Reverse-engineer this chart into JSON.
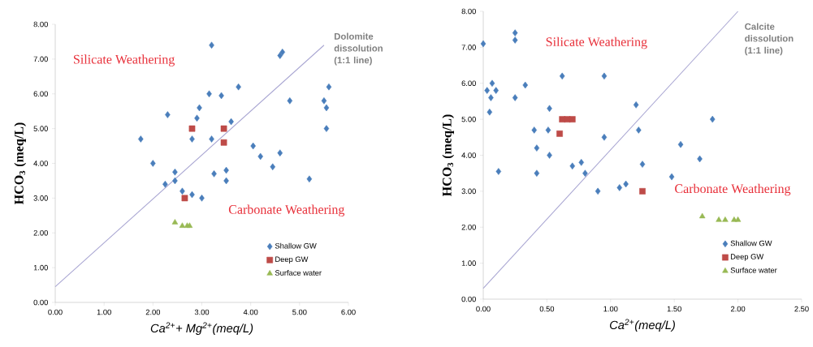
{
  "chart_data": [
    {
      "type": "scatter",
      "xlabel": "Ca$^{2+}$+ Mg$^{2+}$(meq/L)",
      "ylabel": "HCO$_{3}$ (meq/L)",
      "xlim": [
        0,
        6
      ],
      "ylim": [
        0,
        8
      ],
      "xticks": [
        {
          "value": 0,
          "label": "0.00"
        },
        {
          "value": 1,
          "label": "1.00"
        },
        {
          "value": 2,
          "label": "2.00"
        },
        {
          "value": 3,
          "label": "3.00"
        },
        {
          "value": 4,
          "label": "4.00"
        },
        {
          "value": 5,
          "label": "5.00"
        },
        {
          "value": 6,
          "label": "6.00"
        }
      ],
      "yticks": [
        {
          "value": 0,
          "label": "0.00"
        },
        {
          "value": 1,
          "label": "1.00"
        },
        {
          "value": 2,
          "label": "2.00"
        },
        {
          "value": 3,
          "label": "3.00"
        },
        {
          "value": 4,
          "label": "4.00"
        },
        {
          "value": 5,
          "label": "5.00"
        },
        {
          "value": 6,
          "label": "6.00"
        },
        {
          "value": 7,
          "label": "7.00"
        },
        {
          "value": 8,
          "label": "8.00"
        }
      ],
      "legend": "bottom right",
      "annotations": [
        "Silicate Weathering",
        "Carbonate Weathering",
        "Dolomite dissolution (1:1 line)"
      ],
      "series": [
        {
          "name": "Shallow GW",
          "color": "#4a7ebb",
          "marker": "diamond",
          "x": [
            1.75,
            2.0,
            2.25,
            2.3,
            2.45,
            2.45,
            2.6,
            2.8,
            2.8,
            2.9,
            2.95,
            3.0,
            3.15,
            3.2,
            3.2,
            3.25,
            3.4,
            3.5,
            3.5,
            3.6,
            3.75,
            4.05,
            4.2,
            4.45,
            4.6,
            4.6,
            4.65,
            4.8,
            5.2,
            5.5,
            5.55,
            5.55,
            5.6
          ],
          "values": [
            4.7,
            4.0,
            3.4,
            5.4,
            3.75,
            3.5,
            3.2,
            4.7,
            3.1,
            5.3,
            5.6,
            3.0,
            6.0,
            4.7,
            7.4,
            3.7,
            5.95,
            3.8,
            3.5,
            5.2,
            6.2,
            4.5,
            4.2,
            3.9,
            4.3,
            7.1,
            7.2,
            5.8,
            3.55,
            5.8,
            5.6,
            5.0,
            6.2
          ]
        },
        {
          "name": "Deep GW",
          "color": "#be4b48",
          "marker": "square",
          "x": [
            2.65,
            2.8,
            3.45,
            3.45
          ],
          "values": [
            3.0,
            5.0,
            5.0,
            4.6
          ]
        },
        {
          "name": "Surface water",
          "color": "#98b954",
          "marker": "triangle",
          "x": [
            2.45,
            2.6,
            2.7,
            2.75
          ],
          "values": [
            2.3,
            2.2,
            2.2,
            2.2
          ]
        },
        {
          "type": "line",
          "color": "#a9a6d2",
          "marker": "none",
          "line_style": "solid",
          "x": [
            0,
            5.5
          ],
          "values": [
            0.45,
            7.4
          ]
        }
      ]
    },
    {
      "type": "scatter",
      "xlabel": "Ca$^{2+}$(meq/L)",
      "ylabel": "HCO$_{3}$ (meq/L)",
      "xlim": [
        0,
        2.5
      ],
      "ylim": [
        0,
        8
      ],
      "xticks": [
        {
          "value": 0,
          "label": "0.00"
        },
        {
          "value": 0.5,
          "label": "0.50"
        },
        {
          "value": 1,
          "label": "1.00"
        },
        {
          "value": 1.5,
          "label": "1.50"
        },
        {
          "value": 2,
          "label": "2.00"
        },
        {
          "value": 2.5,
          "label": "2.50"
        }
      ],
      "yticks": [
        {
          "value": 0,
          "label": "0.00"
        },
        {
          "value": 1,
          "label": "1.00"
        },
        {
          "value": 2,
          "label": "2.00"
        },
        {
          "value": 3,
          "label": "3.00"
        },
        {
          "value": 4,
          "label": "4.00"
        },
        {
          "value": 5,
          "label": "5.00"
        },
        {
          "value": 6,
          "label": "6.00"
        },
        {
          "value": 7,
          "label": "7.00"
        },
        {
          "value": 8,
          "label": "8.00"
        }
      ],
      "legend": "bottom right",
      "annotations": [
        "Silicate Weathering",
        "Carbonate Weathering",
        "Calcite dissolution (1:1 line)"
      ],
      "series": [
        {
          "name": "Shallow GW",
          "color": "#4a7ebb",
          "marker": "diamond",
          "x": [
            0.0,
            0.25,
            0.25,
            0.03,
            0.07,
            0.06,
            0.1,
            0.05,
            0.33,
            0.25,
            0.62,
            0.95,
            0.12,
            0.4,
            0.42,
            0.42,
            0.52,
            0.51,
            0.52,
            0.7,
            0.77,
            0.8,
            0.9,
            0.95,
            1.07,
            1.12,
            1.2,
            1.22,
            1.25,
            1.48,
            1.55,
            1.7,
            1.8
          ],
          "values": [
            7.1,
            7.4,
            7.2,
            5.8,
            6.0,
            5.6,
            5.8,
            5.2,
            5.95,
            5.6,
            6.2,
            6.2,
            3.55,
            4.7,
            4.2,
            3.5,
            5.3,
            4.7,
            4.0,
            3.7,
            3.8,
            3.5,
            3.0,
            4.5,
            3.1,
            3.2,
            5.4,
            4.7,
            3.75,
            3.4,
            4.3,
            3.9,
            5.0
          ]
        },
        {
          "name": "Deep GW",
          "color": "#be4b48",
          "marker": "square",
          "x": [
            0.6,
            0.62,
            0.66,
            0.7,
            1.25
          ],
          "values": [
            4.6,
            5.0,
            5.0,
            5.0,
            3.0
          ]
        },
        {
          "name": "Surface water",
          "color": "#98b954",
          "marker": "triangle",
          "x": [
            1.72,
            1.85,
            1.9,
            1.97,
            2.0
          ],
          "values": [
            2.3,
            2.2,
            2.2,
            2.2,
            2.2
          ]
        },
        {
          "type": "line",
          "color": "#a9a6d2",
          "marker": "none",
          "line_style": "solid",
          "x": [
            0,
            2.0
          ],
          "values": [
            0.3,
            8.0
          ]
        }
      ]
    }
  ]
}
